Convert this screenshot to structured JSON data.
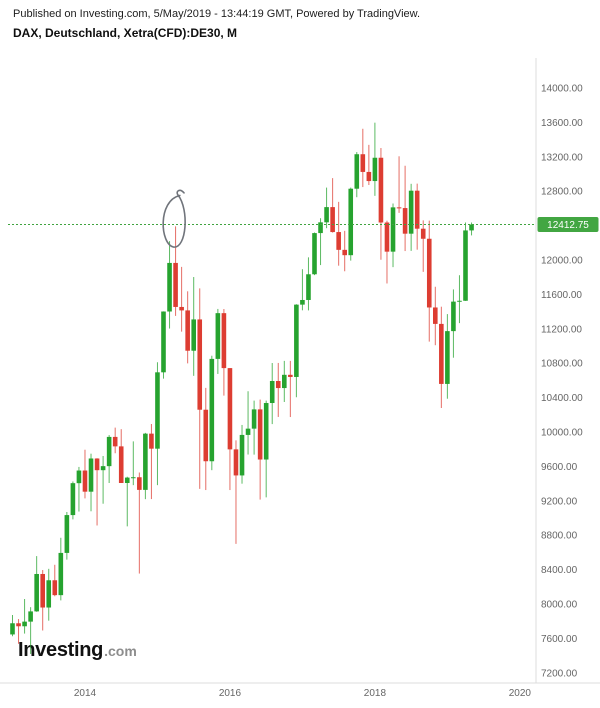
{
  "header": {
    "published_line": "Published on Investing.com, 5/May/2019 - 13:44:19 GMT, Powered by TradingView.",
    "instrument_line": "DAX, Deutschland, Xetra(CFD):DE30, M"
  },
  "watermark": {
    "name": "Investing",
    "suffix": ".com"
  },
  "colors": {
    "up_candle": "#26a32f",
    "down_candle": "#dd3d32",
    "last_price_line": "#3fa33f",
    "last_price_bg": "#42a642",
    "last_price_text": "#ffffff",
    "axis_text": "#656565",
    "axis_border": "#dcdcdc",
    "annotation": "#70747b"
  },
  "price_axis": {
    "labels": [
      "14000.00",
      "13600.00",
      "13200.00",
      "12800.00",
      "12400.00",
      "12000.00",
      "11600.00",
      "11200.00",
      "10800.00",
      "10400.00",
      "10000.00",
      "9600.00",
      "9200.00",
      "8800.00",
      "8400.00",
      "8000.00",
      "7600.00",
      "7200.00"
    ],
    "last_price": {
      "label": "12412.75",
      "value": 12412.75
    }
  },
  "time_axis": {
    "labels": [
      {
        "text": "2014",
        "month_index": 12
      },
      {
        "text": "2016",
        "month_index": 36
      },
      {
        "text": "2018",
        "month_index": 60
      },
      {
        "text": "2020",
        "month_index": 84
      }
    ]
  },
  "chart_data": {
    "type": "candlestick",
    "title": "DAX, Deutschland, Xetra(CFD):DE30",
    "interval": "Monthly",
    "y_axis": {
      "min": 7200,
      "max": 14000,
      "tick_step": 400,
      "grid": false
    },
    "legend_position": "none",
    "candles": [
      [
        "2013-01",
        7646,
        7872,
        7625,
        7776
      ],
      [
        "2013-02",
        7776,
        7825,
        7537,
        7741
      ],
      [
        "2013-03",
        7741,
        8058,
        7656,
        7795
      ],
      [
        "2013-04",
        7795,
        7963,
        7419,
        7914
      ],
      [
        "2013-05",
        7914,
        8557,
        7909,
        8349
      ],
      [
        "2013-06",
        8349,
        8395,
        7692,
        7959
      ],
      [
        "2013-07",
        7959,
        8409,
        7806,
        8276
      ],
      [
        "2013-08",
        8276,
        8456,
        8090,
        8103
      ],
      [
        "2013-09",
        8103,
        8770,
        8042,
        8594
      ],
      [
        "2013-10",
        8594,
        9070,
        8516,
        9034
      ],
      [
        "2013-11",
        9034,
        9425,
        8984,
        9405
      ],
      [
        "2013-12",
        9405,
        9594,
        9075,
        9552
      ],
      [
        "2014-01",
        9552,
        9794,
        9228,
        9306
      ],
      [
        "2014-02",
        9306,
        9748,
        9078,
        9692
      ],
      [
        "2014-03",
        9692,
        9695,
        8913,
        9556
      ],
      [
        "2014-04",
        9556,
        9721,
        9166,
        9603
      ],
      [
        "2014-05",
        9603,
        9964,
        9407,
        9943
      ],
      [
        "2014-06",
        9943,
        10051,
        9753,
        9833
      ],
      [
        "2014-07",
        9833,
        10033,
        9486,
        9407
      ],
      [
        "2014-08",
        9407,
        9480,
        8903,
        9470
      ],
      [
        "2014-09",
        9470,
        9891,
        9382,
        9474
      ],
      [
        "2014-10",
        9474,
        9529,
        8354,
        9327
      ],
      [
        "2014-11",
        9327,
        9990,
        9219,
        9981
      ],
      [
        "2014-12",
        9981,
        10093,
        9220,
        9806
      ],
      [
        "2015-01",
        9806,
        10811,
        9382,
        10694
      ],
      [
        "2015-02",
        10694,
        11402,
        10620,
        11401
      ],
      [
        "2015-03",
        11401,
        12219,
        11203,
        11966
      ],
      [
        "2015-04",
        11966,
        12391,
        11350,
        11454
      ],
      [
        "2015-05",
        11454,
        11920,
        11167,
        11414
      ],
      [
        "2015-06",
        11414,
        11636,
        10798,
        10945
      ],
      [
        "2015-07",
        10945,
        11802,
        10653,
        11309
      ],
      [
        "2015-08",
        11309,
        11670,
        9338,
        10259
      ],
      [
        "2015-09",
        10259,
        10513,
        9325,
        9660
      ],
      [
        "2015-10",
        9660,
        10887,
        9556,
        10850
      ],
      [
        "2015-11",
        10850,
        11431,
        10675,
        11382
      ],
      [
        "2015-12",
        11382,
        11430,
        10423,
        10743
      ],
      [
        "2016-01",
        10743,
        10743,
        9325,
        9798
      ],
      [
        "2016-02",
        9798,
        9903,
        8699,
        9495
      ],
      [
        "2016-03",
        9495,
        10082,
        9399,
        9966
      ],
      [
        "2016-04",
        9966,
        10474,
        9738,
        10039
      ],
      [
        "2016-05",
        10039,
        10365,
        9737,
        10263
      ],
      [
        "2016-06",
        10263,
        10377,
        9214,
        9680
      ],
      [
        "2016-07",
        9680,
        10365,
        9240,
        10337
      ],
      [
        "2016-08",
        10337,
        10802,
        10092,
        10593
      ],
      [
        "2016-09",
        10593,
        10803,
        10175,
        10511
      ],
      [
        "2016-10",
        10511,
        10827,
        10349,
        10665
      ],
      [
        "2016-11",
        10665,
        10827,
        10174,
        10640
      ],
      [
        "2016-12",
        10640,
        11486,
        10404,
        11481
      ],
      [
        "2017-01",
        11481,
        11893,
        11415,
        11535
      ],
      [
        "2017-02",
        11535,
        12031,
        11414,
        11834
      ],
      [
        "2017-03",
        11834,
        12320,
        11824,
        12313
      ],
      [
        "2017-04",
        12313,
        12486,
        11941,
        12438
      ],
      [
        "2017-05",
        12438,
        12842,
        12370,
        12615
      ],
      [
        "2017-06",
        12615,
        12952,
        12319,
        12325
      ],
      [
        "2017-07",
        12325,
        12676,
        11934,
        12118
      ],
      [
        "2017-08",
        12118,
        12339,
        11869,
        12056
      ],
      [
        "2017-09",
        12056,
        12842,
        11993,
        12829
      ],
      [
        "2017-10",
        12829,
        13255,
        12730,
        13230
      ],
      [
        "2017-11",
        13230,
        13526,
        12848,
        13024
      ],
      [
        "2017-12",
        13024,
        13339,
        12872,
        12918
      ],
      [
        "2018-01",
        12918,
        13597,
        12746,
        13189
      ],
      [
        "2018-02",
        13189,
        13302,
        12003,
        12436
      ],
      [
        "2018-03",
        12436,
        12457,
        11727,
        12097
      ],
      [
        "2018-04",
        12097,
        12657,
        11917,
        12612
      ],
      [
        "2018-05",
        12612,
        13206,
        12548,
        12604
      ],
      [
        "2018-06",
        12604,
        13096,
        12104,
        12306
      ],
      [
        "2018-07",
        12306,
        12886,
        12106,
        12806
      ],
      [
        "2018-08",
        12806,
        12888,
        12120,
        12364
      ],
      [
        "2018-09",
        12364,
        12461,
        11862,
        12247
      ],
      [
        "2018-10",
        12247,
        12458,
        11051,
        11448
      ],
      [
        "2018-11",
        11448,
        11689,
        11009,
        11257
      ],
      [
        "2018-12",
        11257,
        11457,
        10279,
        10559
      ],
      [
        "2019-01",
        10559,
        11371,
        10387,
        11173
      ],
      [
        "2019-02",
        11173,
        11658,
        10864,
        11516
      ],
      [
        "2019-03",
        11516,
        11823,
        11266,
        11526
      ],
      [
        "2019-04",
        11526,
        12436,
        11524,
        12344
      ],
      [
        "2019-05",
        12344,
        12436,
        12286,
        12413
      ]
    ],
    "annotations": {
      "hand_drawn_ellipse": {
        "type": "ellipse",
        "month_index_center": 26.7,
        "price_center": 12450,
        "rx_months": 2.0,
        "ry_points": 300,
        "color": "#70747b"
      }
    }
  }
}
